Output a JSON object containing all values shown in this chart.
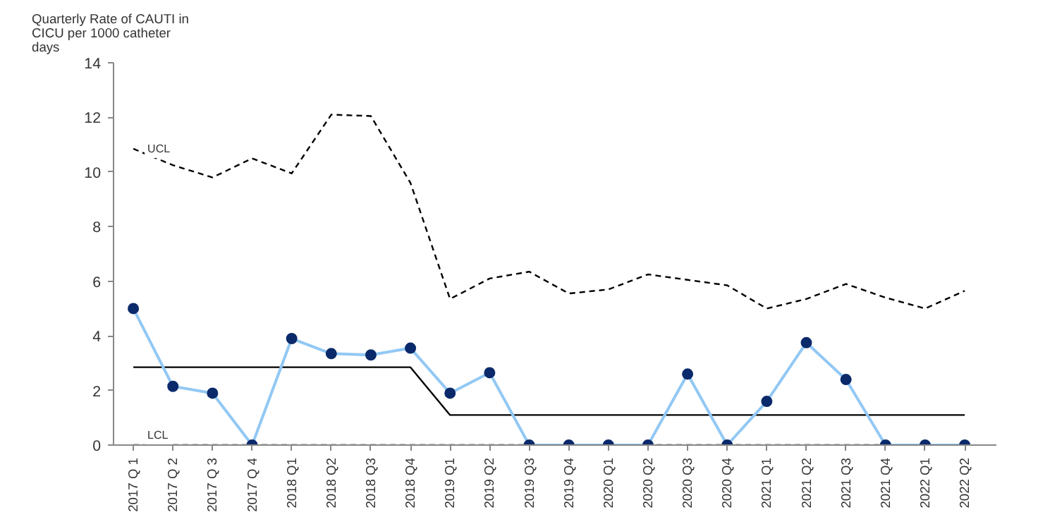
{
  "chart_data": {
    "type": "line",
    "ylabel": "Quarterly Rate of CAUTI in CICU per 1000 catheter days",
    "categories": [
      "2017 Q 1",
      "2017 Q 2",
      "2017 Q 3",
      "2017 Q 4",
      "2018 Q1",
      "2018 Q2",
      "2018 Q3",
      "2018 Q4",
      "2019 Q1",
      "2019 Q2",
      "2019 Q3",
      "2019 Q4",
      "2020 Q1",
      "2020 Q2",
      "2020 Q3",
      "2020 Q4",
      "2021 Q1",
      "2021 Q2",
      "2021 Q3",
      "2021 Q4",
      "2022 Q1",
      "2022 Q2"
    ],
    "series": [
      {
        "name": "UCL",
        "color": "#000000",
        "marker": "none",
        "line_style": "dashed",
        "values": [
          10.85,
          10.25,
          9.8,
          10.5,
          9.95,
          12.1,
          12.05,
          9.6,
          5.35,
          6.1,
          6.35,
          5.55,
          5.7,
          6.25,
          6.05,
          5.85,
          5.0,
          5.35,
          5.9,
          5.4,
          5.0,
          5.65
        ]
      },
      {
        "color": "#000000",
        "marker": "none",
        "line_style": "solid",
        "values": [
          2.85,
          2.85,
          2.85,
          2.85,
          2.85,
          2.85,
          2.85,
          2.85,
          1.1,
          1.1,
          1.1,
          1.1,
          1.1,
          1.1,
          1.1,
          1.1,
          1.1,
          1.1,
          1.1,
          1.1,
          1.1,
          1.1
        ]
      },
      {
        "name": "LCL",
        "color": "#000000",
        "marker": "none",
        "line_style": "dashed",
        "values": [
          0,
          0,
          0,
          0,
          0,
          0,
          0,
          0,
          0,
          0,
          0,
          0,
          0,
          0,
          0,
          0,
          0,
          0,
          0,
          0,
          0,
          0
        ]
      },
      {
        "color": "#92c8f4",
        "marker": "circle",
        "line_style": "solid",
        "values": [
          5.0,
          2.15,
          1.9,
          0,
          3.9,
          3.35,
          3.3,
          3.55,
          1.9,
          2.65,
          0,
          0,
          0,
          0,
          2.6,
          0,
          1.6,
          3.75,
          2.4,
          0,
          0,
          0
        ]
      }
    ],
    "ylim": [
      0,
      14
    ],
    "yticks": [
      0,
      2,
      4,
      6,
      8,
      10,
      12,
      14
    ],
    "grid": false
  }
}
